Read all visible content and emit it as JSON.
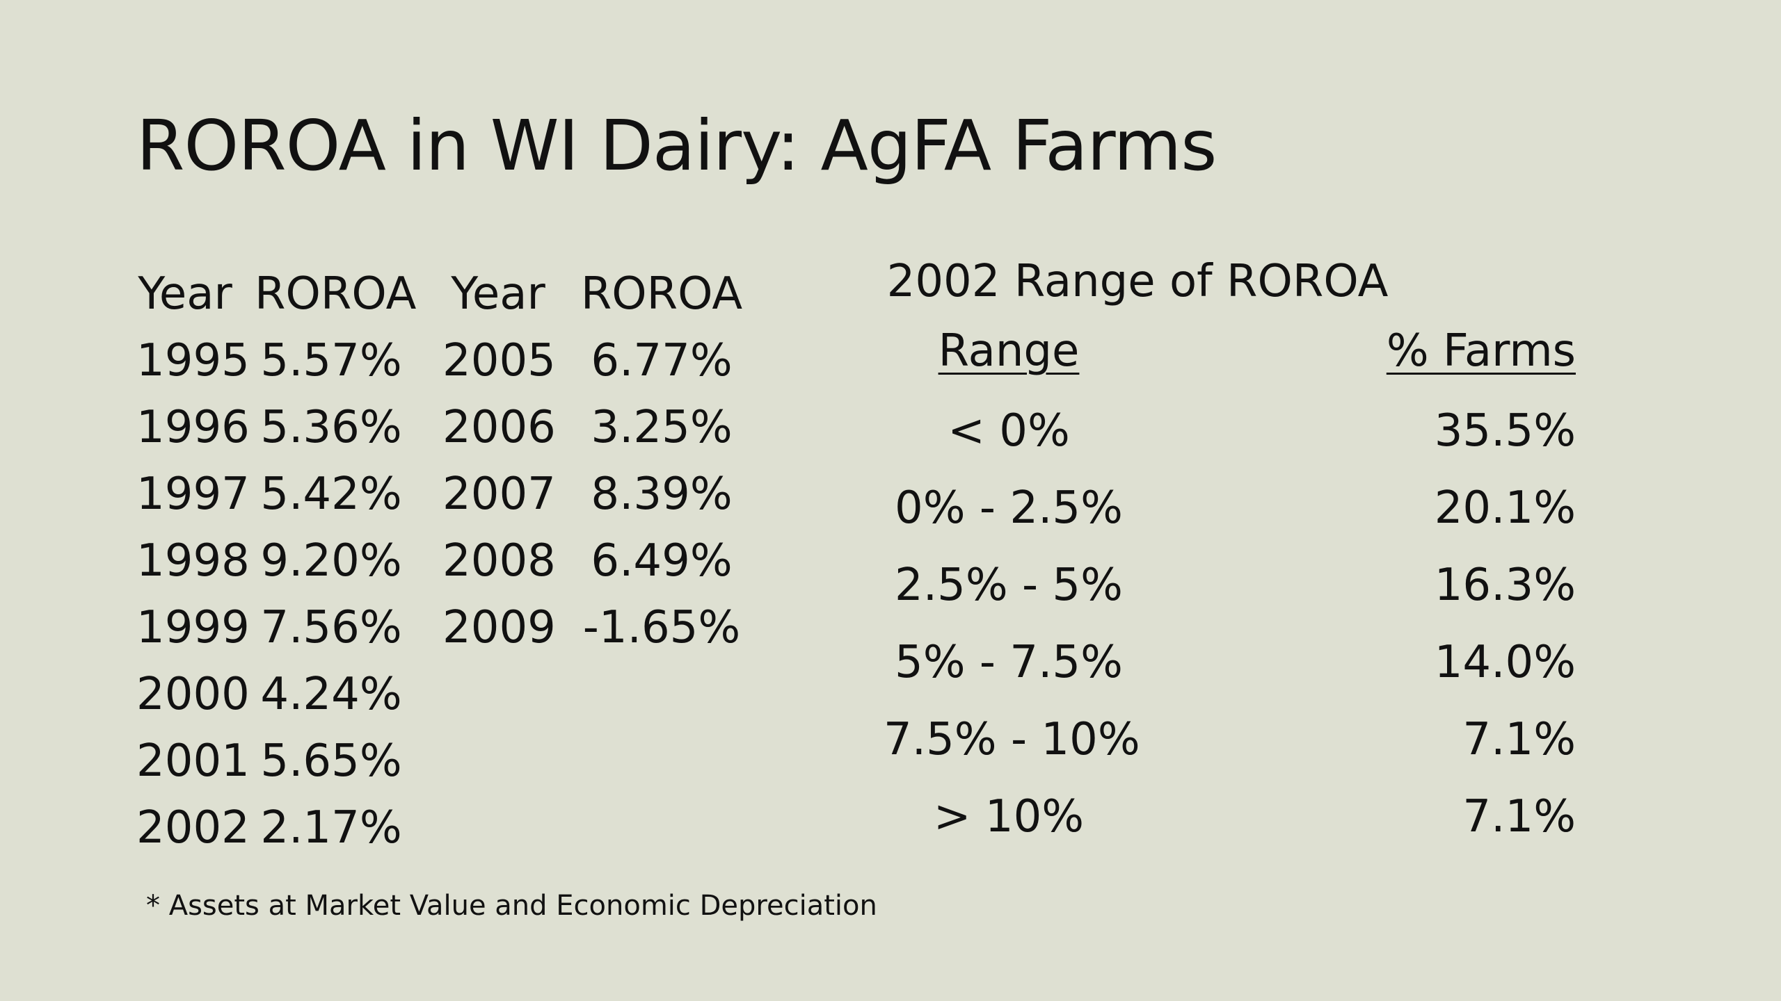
{
  "slide": {
    "title": "ROROA in WI Dairy: AgFA Farms",
    "yearly": {
      "headers": [
        "Year",
        "ROROA",
        "Year",
        "ROROA"
      ],
      "rows": [
        {
          "y1": "1995",
          "v1": "5.57%",
          "y2": "2005",
          "v2": "6.77%"
        },
        {
          "y1": "1996",
          "v1": "5.36%",
          "y2": "2006",
          "v2": "3.25%"
        },
        {
          "y1": "1997",
          "v1": "5.42%",
          "y2": "2007",
          "v2": "8.39%"
        },
        {
          "y1": "1998",
          "v1": "9.20%",
          "y2": "2008",
          "v2": "6.49%"
        },
        {
          "y1": "1999",
          "v1": "7.56%",
          "y2": "2009",
          "v2": "-1.65%"
        },
        {
          "y1": "2000",
          "v1": "4.24%",
          "y2": "",
          "v2": ""
        },
        {
          "y1": "2001",
          "v1": "5.65%",
          "y2": "",
          "v2": ""
        },
        {
          "y1": "2002",
          "v1": "2.17%",
          "y2": "",
          "v2": ""
        }
      ]
    },
    "range": {
      "title": "2002 Range of ROROA",
      "headers": {
        "range": "Range",
        "farms": "% Farms"
      },
      "rows": [
        {
          "range": "< 0%",
          "farms": "35.5%"
        },
        {
          "range": "0% - 2.5%",
          "farms": "20.1%"
        },
        {
          "range": "2.5% - 5%",
          "farms": "16.3%"
        },
        {
          "range": "5% - 7.5%",
          "farms": "14.0%"
        },
        {
          "range": "7.5% - 10%",
          "farms": "7.1%"
        },
        {
          "range": "> 10%",
          "farms": "7.1%"
        }
      ]
    },
    "footnote": "* Assets at Market Value and Economic Depreciation"
  }
}
